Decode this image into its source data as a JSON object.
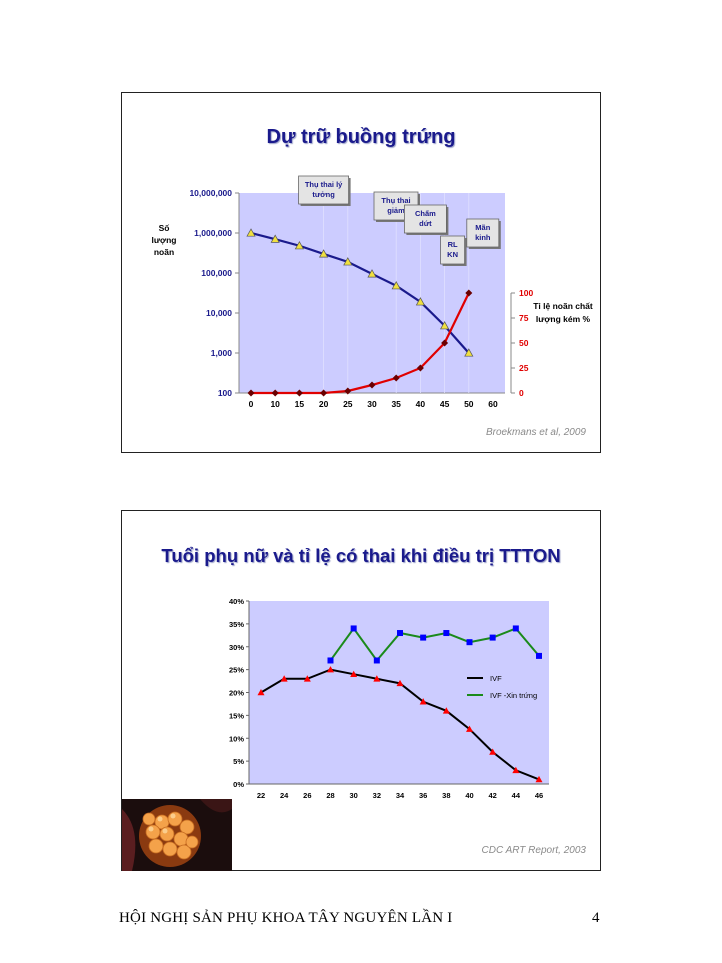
{
  "slides": [
    {
      "title": "Dự trữ buồng trứng",
      "citation": "Broekmans et al, 2009",
      "left_axis_label": [
        "Số",
        "lượng",
        "noãn"
      ],
      "right_axis_label": [
        "Tỉ lệ noãn chất",
        "lượng kém %"
      ],
      "annotations": [
        {
          "lines": [
            "Thụ thai lý",
            "tưởng"
          ]
        },
        {
          "lines": [
            "Thụ thai",
            "giảm"
          ]
        },
        {
          "lines": [
            "Chấm",
            "dứt"
          ]
        },
        {
          "lines": [
            "Mãn",
            "kinh"
          ]
        },
        {
          "lines": [
            "RL",
            "KN"
          ]
        }
      ]
    },
    {
      "title": "Tuổi phụ nữ và tỉ lệ có thai khi điều trị TTTON",
      "citation": "CDC ART Report, 2003",
      "photo_icon": "oocyte-photo"
    }
  ],
  "chart_data": [
    {
      "type": "line",
      "x": [
        0,
        10,
        15,
        20,
        25,
        30,
        35,
        40,
        45,
        50,
        60
      ],
      "xticks": [
        "0",
        "10",
        "15",
        "20",
        "25",
        "30",
        "35",
        "40",
        "45",
        "50",
        "60"
      ],
      "y_left_scale": "log",
      "y_left_ticks": [
        "100",
        "1,000",
        "10,000",
        "100,000",
        "1,000,000",
        "10,000,000"
      ],
      "y_left_ylim": [
        100,
        10000000
      ],
      "y_right_ticks": [
        "0",
        "25",
        "50",
        "75",
        "100"
      ],
      "y_right_ylim": [
        0,
        100
      ],
      "series": [
        {
          "axis": "left",
          "color": "#1a1a8c",
          "marker": "triangle",
          "marker_color": "#f0e040",
          "points": [
            [
              0,
              1000000
            ],
            [
              10,
              700000
            ],
            [
              15,
              480000
            ],
            [
              20,
              300000
            ],
            [
              25,
              190000
            ],
            [
              30,
              95000
            ],
            [
              35,
              48000
            ],
            [
              40,
              19000
            ],
            [
              45,
              4800
            ],
            [
              50,
              1000
            ]
          ]
        },
        {
          "axis": "right",
          "color": "#e00000",
          "marker": "diamond",
          "marker_color": "#6a0000",
          "points": [
            [
              0,
              0
            ],
            [
              10,
              0
            ],
            [
              15,
              0
            ],
            [
              20,
              0
            ],
            [
              25,
              2
            ],
            [
              30,
              8
            ],
            [
              35,
              15
            ],
            [
              40,
              25
            ],
            [
              45,
              50
            ],
            [
              50,
              100
            ]
          ]
        }
      ],
      "plot_bg": "#ccccff"
    },
    {
      "type": "line",
      "categories": [
        "22",
        "24",
        "26",
        "28",
        "30",
        "32",
        "34",
        "36",
        "38",
        "40",
        "42",
        "44",
        "46"
      ],
      "yticks": [
        "0%",
        "5%",
        "10%",
        "15%",
        "20%",
        "25%",
        "30%",
        "35%",
        "40%"
      ],
      "ylim": [
        0,
        40
      ],
      "series": [
        {
          "name": "IVF",
          "color": "#000000",
          "marker": "triangle",
          "marker_color": "#ff0000",
          "values": [
            20,
            23,
            23,
            25,
            24,
            23,
            22,
            18,
            16,
            12,
            7,
            3,
            1
          ]
        },
        {
          "name": "IVF -Xin trứng",
          "color": "#1a8a1a",
          "marker": "square",
          "marker_color": "#0000ff",
          "values": [
            null,
            null,
            null,
            27,
            34,
            27,
            33,
            32,
            33,
            31,
            32,
            34,
            28
          ]
        }
      ],
      "legend": "right",
      "plot_bg": "#ccccff"
    }
  ],
  "footer": {
    "conference": "HỘI NGHỊ SẢN PHỤ KHOA TÂY NGUYÊN LẦN I",
    "page": "4"
  }
}
